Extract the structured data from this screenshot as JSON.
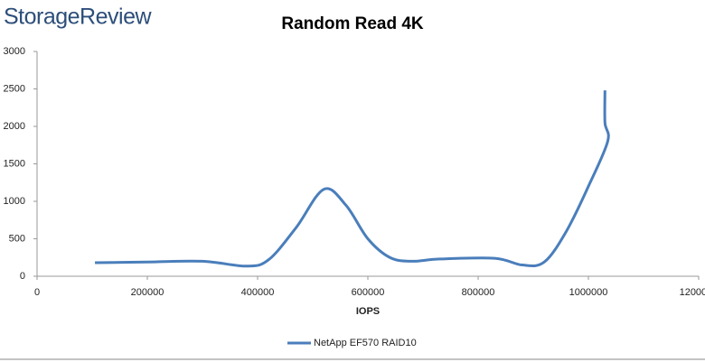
{
  "chart_data": {
    "type": "line",
    "logo": "StorageReview",
    "title": "Random Read 4K",
    "x_label": "IOPS",
    "legend": "bottom",
    "grid": false,
    "xlim": [
      0,
      1200000
    ],
    "xticks": [
      0,
      200000,
      400000,
      600000,
      800000,
      1000000,
      1200000
    ],
    "ylim": [
      0,
      3000
    ],
    "yticks": [
      0,
      500,
      1000,
      1500,
      2000,
      2500,
      3000
    ],
    "series": [
      {
        "name": "NetApp EF570 RAID10",
        "color": "#4a7ebb",
        "x": [
          105000,
          200000,
          300000,
          380000,
          420000,
          470000,
          520000,
          560000,
          600000,
          640000,
          680000,
          730000,
          830000,
          880000,
          920000,
          960000,
          1000000,
          1035000,
          1030000,
          1030000
        ],
        "values": [
          180,
          190,
          200,
          135,
          220,
          650,
          1160,
          950,
          500,
          250,
          200,
          230,
          240,
          150,
          190,
          600,
          1200,
          1800,
          2050,
          2480
        ]
      }
    ]
  }
}
